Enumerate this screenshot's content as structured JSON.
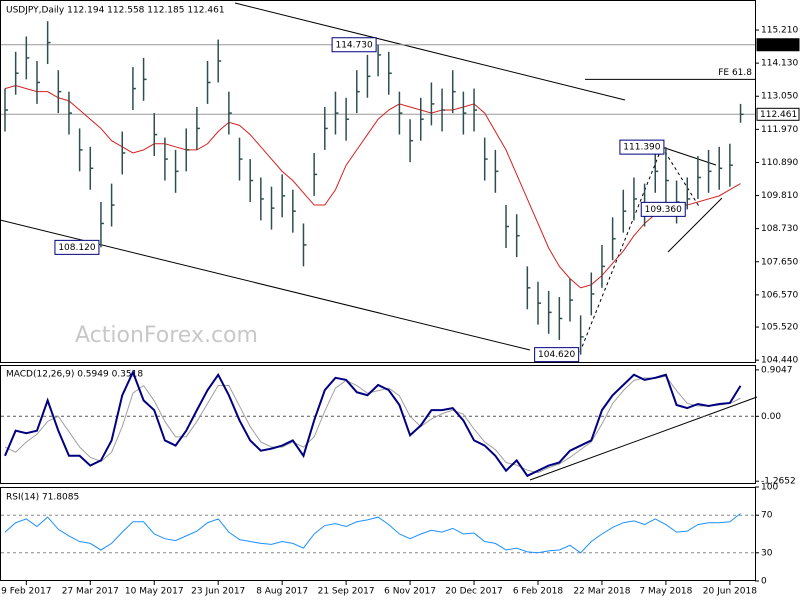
{
  "chart_data": [
    {
      "type": "ohlc",
      "title": "USDJPY,Daily  112.194 112.558 112.185 112.461",
      "watermark": "ActionForex.com",
      "categories": [
        null,
        null,
        "9 Feb 2017",
        null,
        null,
        null,
        null,
        null,
        "27 Mar 2017",
        null,
        null,
        null,
        null,
        null,
        "10 May 2017",
        null,
        null,
        null,
        null,
        null,
        "23 Jun 2017",
        null,
        null,
        null,
        null,
        null,
        "8 Aug 2017",
        null,
        null,
        null,
        null,
        null,
        "21 Sep 2017",
        null,
        null,
        null,
        null,
        null,
        "6 Nov 2017",
        null,
        null,
        null,
        null,
        null,
        "20 Dec 2017",
        null,
        null,
        null,
        null,
        null,
        "6 Feb 2018",
        null,
        null,
        null,
        null,
        null,
        "22 Mar 2018",
        null,
        null,
        null,
        null,
        null,
        "7 May 2018",
        null,
        null,
        null,
        null,
        null,
        "20 Jun 2018",
        null
      ],
      "high": [
        113.3,
        114.5,
        115.0,
        114.2,
        115.5,
        113.9,
        113.2,
        112.0,
        111.4,
        109.6,
        110.2,
        111.9,
        114.0,
        114.3,
        112.5,
        111.7,
        111.3,
        112.0,
        112.7,
        114.2,
        114.9,
        113.2,
        111.7,
        111.0,
        110.4,
        110.1,
        110.5,
        110.0,
        108.9,
        111.2,
        112.7,
        113.2,
        113.0,
        113.9,
        114.4,
        114.73,
        114.5,
        113.2,
        112.3,
        113.0,
        113.5,
        113.3,
        113.9,
        113.2,
        113.3,
        111.7,
        111.3,
        109.5,
        109.2,
        107.5,
        107.0,
        106.7,
        106.5,
        107.1,
        105.9,
        107.3,
        108.2,
        109.1,
        110.0,
        110.4,
        110.2,
        111.3,
        111.39,
        110.3,
        110.4,
        111.1,
        111.3,
        111.4,
        111.5,
        112.8
      ],
      "low": [
        111.9,
        113.1,
        113.6,
        112.8,
        114.1,
        112.5,
        111.8,
        110.6,
        110.0,
        108.12,
        108.8,
        110.5,
        112.6,
        112.9,
        111.1,
        110.3,
        109.9,
        110.6,
        111.3,
        112.8,
        113.5,
        111.8,
        110.3,
        109.6,
        109.0,
        108.7,
        109.1,
        108.6,
        107.5,
        109.8,
        111.3,
        111.8,
        111.6,
        112.5,
        113.0,
        113.7,
        113.1,
        111.8,
        110.9,
        111.6,
        112.1,
        111.9,
        112.5,
        111.8,
        111.9,
        110.3,
        109.9,
        108.1,
        107.8,
        106.1,
        105.6,
        105.3,
        105.1,
        105.7,
        104.62,
        105.9,
        106.8,
        107.7,
        108.6,
        109.0,
        108.8,
        109.9,
        109.6,
        108.9,
        109.36,
        109.7,
        109.9,
        110.0,
        110.1,
        112.185
      ],
      "close": [
        112.6,
        113.8,
        114.3,
        113.5,
        114.8,
        113.2,
        112.5,
        111.3,
        110.7,
        108.9,
        109.5,
        111.2,
        113.3,
        113.6,
        111.8,
        111.0,
        110.6,
        111.3,
        112.0,
        113.5,
        114.2,
        112.5,
        111.0,
        110.3,
        109.7,
        109.4,
        109.8,
        109.3,
        108.2,
        110.5,
        112.0,
        112.5,
        112.3,
        113.2,
        113.7,
        114.4,
        113.8,
        112.5,
        111.6,
        112.3,
        112.8,
        112.6,
        113.2,
        112.5,
        112.6,
        111.0,
        110.6,
        108.8,
        108.5,
        106.8,
        106.3,
        106.0,
        105.8,
        106.4,
        105.2,
        106.6,
        107.5,
        108.4,
        109.3,
        109.7,
        109.5,
        110.6,
        110.3,
        109.6,
        109.7,
        110.4,
        110.6,
        110.7,
        110.8,
        112.461
      ],
      "bar_color": "#2f4f4f",
      "series": [
        {
          "color": "#d42020",
          "values": [
            113.3,
            113.4,
            113.3,
            113.2,
            113.2,
            113.0,
            112.9,
            112.6,
            112.3,
            112.0,
            111.6,
            111.4,
            111.2,
            111.3,
            111.5,
            111.5,
            111.4,
            111.3,
            111.3,
            111.5,
            111.9,
            112.2,
            112.1,
            111.8,
            111.4,
            111.0,
            110.6,
            110.3,
            109.9,
            109.5,
            109.5,
            110.0,
            110.8,
            111.3,
            111.8,
            112.3,
            112.6,
            112.8,
            112.7,
            112.6,
            112.5,
            112.6,
            112.6,
            112.7,
            112.8,
            112.5,
            111.9,
            111.3,
            110.5,
            109.7,
            108.9,
            108.1,
            107.5,
            107.1,
            106.8,
            106.9,
            107.2,
            107.6,
            108.0,
            108.5,
            108.9,
            109.2,
            109.4,
            109.5,
            109.5,
            109.6,
            109.7,
            109.8,
            110.0,
            110.2
          ]
        }
      ],
      "ylim": [
        104.38,
        116.19
      ],
      "yticks": [
        {
          "value": 115.21,
          "label": "115.210"
        },
        {
          "value": 114.13,
          "label": "114.130"
        },
        {
          "value": 113.05,
          "label": "113.050"
        },
        {
          "value": 111.97,
          "label": "111.970"
        },
        {
          "value": 110.89,
          "label": "110.890"
        },
        {
          "value": 109.81,
          "label": "109.810"
        },
        {
          "value": 108.73,
          "label": "108.730"
        },
        {
          "value": 107.65,
          "label": "107.650"
        },
        {
          "value": 106.57,
          "label": "106.570"
        },
        {
          "value": 105.52,
          "label": "105.520"
        },
        {
          "value": 104.44,
          "label": "104.440"
        }
      ],
      "levels": [
        {
          "value": 114.73,
          "label": "114.730"
        },
        {
          "value": 113.6,
          "label": "FE 61.8"
        },
        {
          "value": 112.461,
          "label": "112.461"
        }
      ],
      "annotations": [
        {
          "value": 114.73,
          "label": "114.730"
        },
        {
          "value": 108.12,
          "label": "108.120"
        },
        {
          "value": 104.62,
          "label": "104.620"
        },
        {
          "value": 111.39,
          "label": "111.390"
        },
        {
          "value": 109.36,
          "label": "109.360"
        }
      ]
    },
    {
      "type": "line",
      "title": "MACD(12,26,9) 0.5949 0.3518",
      "series": [
        {
          "color": "#000080",
          "values": [
            -0.77,
            -0.28,
            -0.33,
            -0.28,
            0.31,
            -0.28,
            -0.77,
            -0.77,
            -0.96,
            -0.86,
            -0.47,
            0.41,
            0.86,
            0.31,
            0.12,
            -0.47,
            -0.57,
            -0.28,
            0.12,
            0.51,
            0.81,
            0.41,
            -0.08,
            -0.47,
            -0.67,
            -0.63,
            -0.57,
            -0.47,
            -0.77,
            -0.08,
            0.51,
            0.75,
            0.71,
            0.47,
            0.41,
            0.61,
            0.51,
            0.22,
            -0.37,
            -0.18,
            0.12,
            0.12,
            0.16,
            -0.08,
            -0.47,
            -0.57,
            -0.77,
            -1.06,
            -0.86,
            -1.16,
            -1.06,
            -0.96,
            -0.9,
            -0.67,
            -0.57,
            -0.47,
            0.12,
            0.41,
            0.61,
            0.81,
            0.71,
            0.75,
            0.81,
            0.22,
            0.16,
            0.24,
            0.2,
            0.24,
            0.26,
            0.5949
          ]
        },
        {
          "color": "#a0a0a0",
          "values": [
            -0.6,
            -0.7,
            -0.5,
            -0.35,
            -0.1,
            0.0,
            -0.3,
            -0.6,
            -0.8,
            -0.88,
            -0.7,
            -0.2,
            0.45,
            0.6,
            0.3,
            -0.1,
            -0.4,
            -0.4,
            -0.1,
            0.25,
            0.6,
            0.6,
            0.2,
            -0.2,
            -0.5,
            -0.6,
            -0.6,
            -0.5,
            -0.6,
            -0.4,
            0.1,
            0.55,
            0.7,
            0.6,
            0.45,
            0.5,
            0.55,
            0.4,
            0.0,
            -0.2,
            -0.05,
            0.05,
            0.12,
            0.04,
            -0.25,
            -0.5,
            -0.65,
            -0.9,
            -0.95,
            -1.05,
            -1.1,
            -1.0,
            -0.93,
            -0.8,
            -0.65,
            -0.5,
            -0.15,
            0.25,
            0.5,
            0.7,
            0.75,
            0.74,
            0.78,
            0.5,
            0.25,
            0.2,
            0.2,
            0.22,
            0.25,
            0.3518
          ]
        }
      ],
      "ylim": [
        -1.3,
        1.0
      ],
      "yticks": [
        0.9047,
        {
          "value": 0,
          "label": "0.00"
        },
        -1.2652
      ],
      "zero_line": true
    },
    {
      "type": "line",
      "title": "RSI(14) 71.8085",
      "series": [
        {
          "color": "#1e90ff",
          "values": [
            52,
            62,
            66,
            58,
            68,
            55,
            48,
            42,
            40,
            33,
            40,
            52,
            63,
            63,
            50,
            45,
            43,
            48,
            53,
            62,
            66,
            52,
            44,
            42,
            40,
            39,
            42,
            40,
            35,
            50,
            59,
            61,
            58,
            63,
            65,
            68,
            60,
            50,
            45,
            50,
            54,
            52,
            56,
            50,
            51,
            42,
            40,
            33,
            35,
            31,
            30,
            32,
            33,
            38,
            30,
            42,
            50,
            57,
            62,
            64,
            60,
            66,
            60,
            52,
            53,
            60,
            62,
            62,
            63,
            71.8085
          ]
        }
      ],
      "ylim": [
        0,
        100
      ],
      "yticks": [
        100,
        70,
        30,
        0
      ],
      "grid": "dashed"
    }
  ]
}
